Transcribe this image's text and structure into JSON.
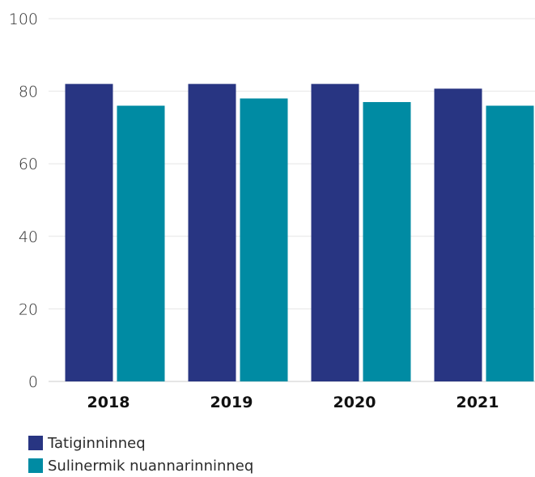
{
  "chart_data": {
    "type": "bar",
    "categories": [
      "2018",
      "2019",
      "2020",
      "2021"
    ],
    "series": [
      {
        "name": "Tatiginninneq",
        "color": "#283582",
        "values": [
          82,
          82,
          82,
          80.7
        ]
      },
      {
        "name": "Sulinermik nuannarinninneq",
        "color": "#008ba3",
        "values": [
          76,
          78,
          77,
          76
        ]
      }
    ],
    "ylim": [
      0,
      100
    ],
    "yticks": [
      0,
      20,
      40,
      60,
      80,
      100
    ],
    "grid": true,
    "legend_position": "bottom-left"
  }
}
